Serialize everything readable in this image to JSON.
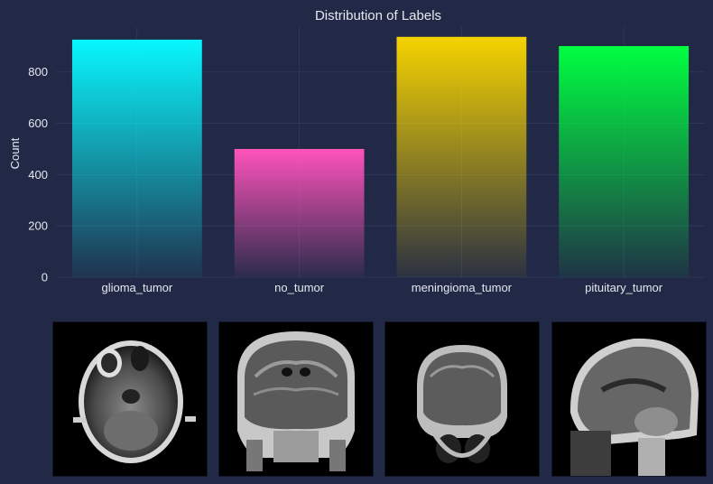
{
  "chart_data": {
    "type": "bar",
    "title": "Distribution of Labels",
    "xlabel": "",
    "ylabel": "Count",
    "categories": [
      "glioma_tumor",
      "no_tumor",
      "meningioma_tumor",
      "pituitary_tumor"
    ],
    "values": [
      926,
      500,
      937,
      901
    ],
    "ylim": [
      0,
      975
    ],
    "yticks": [
      0,
      200,
      400,
      600,
      800
    ],
    "grid": true,
    "colors": [
      "#08F7FE",
      "#FE53BB",
      "#F5D300",
      "#00ff41"
    ],
    "background": "#212946"
  },
  "images": [
    {
      "icon": "mri-axial-scan-icon"
    },
    {
      "icon": "mri-coronal-scan-icon"
    },
    {
      "icon": "mri-coronal-scan-icon"
    },
    {
      "icon": "mri-sagittal-scan-icon"
    }
  ]
}
